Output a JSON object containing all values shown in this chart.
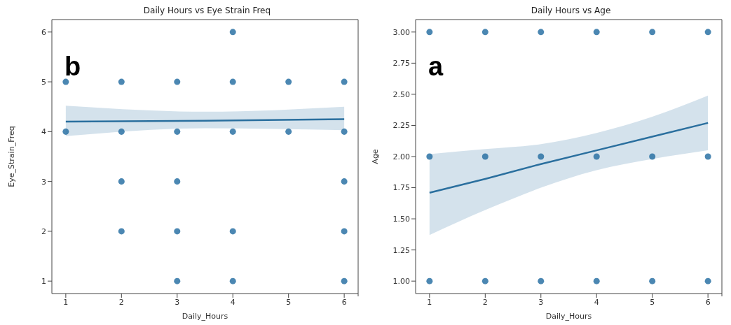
{
  "chart_data": [
    {
      "type": "scatter",
      "title": "Daily Hours vs Eye Strain Freq",
      "xlabel": "Daily_Hours",
      "ylabel": "Eye_Strain_Freq",
      "annotations": [
        "b"
      ],
      "xlim": [
        0.75,
        6.25
      ],
      "xticks": [
        1,
        2,
        3,
        4,
        5,
        6
      ],
      "ylim": [
        0.75,
        6.25
      ],
      "yticks": [
        1,
        2,
        3,
        4,
        5,
        6
      ],
      "grid": false,
      "legend": false,
      "series": [
        {
          "marker": "circle",
          "color": "#2b72a5",
          "x": [
            1,
            1,
            2,
            2,
            2,
            2,
            3,
            3,
            3,
            3,
            3,
            4,
            4,
            4,
            4,
            4,
            5,
            5,
            6,
            6,
            6,
            6,
            6
          ],
          "values": [
            5,
            4,
            5,
            4,
            3,
            2,
            5,
            4,
            3,
            2,
            1,
            6,
            5,
            4,
            2,
            1,
            5,
            4,
            5,
            4,
            3,
            2,
            1
          ]
        },
        {
          "type": "line",
          "marker": "none",
          "color": "#2a6f9e",
          "x": [
            1,
            3.5,
            6
          ],
          "values": [
            4.2,
            4.22,
            4.25
          ],
          "lower": [
            3.91,
            4.07,
            4.03
          ],
          "upper": [
            4.52,
            4.4,
            4.5
          ]
        }
      ]
    },
    {
      "type": "scatter",
      "title": "Daily Hours vs Age",
      "xlabel": "Daily_Hours",
      "ylabel": "Age",
      "annotations": [
        "a"
      ],
      "xlim": [
        0.75,
        6.25
      ],
      "xticks": [
        1,
        2,
        3,
        4,
        5,
        6
      ],
      "ylim": [
        0.9,
        3.1
      ],
      "yticks": [
        {
          "value": 1,
          "label": "1.00"
        },
        {
          "value": 1.25,
          "label": "1.25"
        },
        {
          "value": 1.5,
          "label": "1.50"
        },
        {
          "value": 1.75,
          "label": "1.75"
        },
        {
          "value": 2,
          "label": "2.00"
        },
        {
          "value": 2.25,
          "label": "2.25"
        },
        {
          "value": 2.5,
          "label": "2.50"
        },
        {
          "value": 2.75,
          "label": "2.75"
        },
        {
          "value": 3,
          "label": "3.00"
        }
      ],
      "grid": false,
      "legend": false,
      "series": [
        {
          "marker": "circle",
          "color": "#2b72a5",
          "x": [
            1,
            1,
            1,
            2,
            2,
            2,
            3,
            3,
            3,
            4,
            4,
            4,
            5,
            5,
            5,
            6,
            6,
            6
          ],
          "values": [
            3,
            2,
            1,
            3,
            2,
            1,
            3,
            2,
            1,
            3,
            2,
            1,
            3,
            2,
            1,
            3,
            2,
            1
          ]
        },
        {
          "type": "line",
          "marker": "none",
          "color": "#2a6f9e",
          "x": [
            1,
            2,
            3,
            4,
            5,
            6
          ],
          "values": [
            1.71,
            1.82,
            1.94,
            2.05,
            2.16,
            2.27
          ],
          "lower": [
            1.37,
            1.57,
            1.75,
            1.89,
            1.98,
            2.05
          ],
          "upper": [
            2.02,
            2.06,
            2.1,
            2.19,
            2.32,
            2.49
          ]
        }
      ]
    }
  ]
}
